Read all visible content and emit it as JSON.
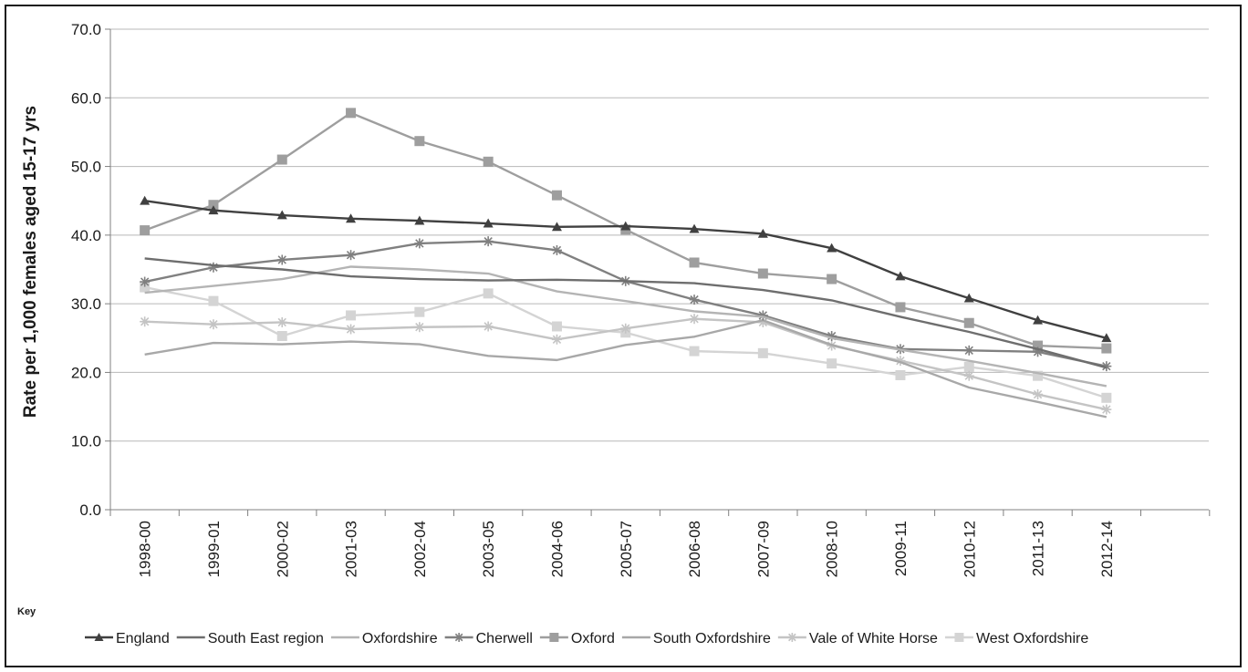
{
  "chart_data": {
    "type": "line",
    "ylabel": "Rate per 1,000 females aged 15-17 yrs",
    "ylim": [
      0,
      70
    ],
    "ytick_step": 10,
    "yticks": [
      "0.0",
      "10.0",
      "20.0",
      "30.0",
      "40.0",
      "50.0",
      "60.0",
      "70.0"
    ],
    "grid": true,
    "legend_title": "Key",
    "legend_position": "bottom",
    "categories": [
      "1998-00",
      "1999-01",
      "2000-02",
      "2001-03",
      "2002-04",
      "2003-05",
      "2004-06",
      "2005-07",
      "2006-08",
      "2007-09",
      "2008-10",
      "2009-11",
      "2010-12",
      "2011-13",
      "2012-14"
    ],
    "series": [
      {
        "name": "England",
        "color": "#404040",
        "marker": "triangle",
        "values": [
          45.0,
          43.6,
          42.9,
          42.4,
          42.1,
          41.7,
          41.2,
          41.3,
          40.9,
          40.2,
          38.1,
          34.0,
          30.8,
          27.6,
          25.0
        ]
      },
      {
        "name": "South East region",
        "color": "#6e6e6e",
        "marker": "none",
        "values": [
          36.6,
          35.6,
          35.0,
          34.0,
          33.6,
          33.4,
          33.5,
          33.3,
          33.0,
          32.0,
          30.5,
          28.1,
          25.9,
          23.4,
          20.7
        ]
      },
      {
        "name": "Oxfordshire",
        "color": "#b4b4b4",
        "marker": "none",
        "values": [
          31.6,
          32.6,
          33.6,
          35.4,
          35.0,
          34.4,
          31.8,
          30.4,
          28.9,
          28.1,
          25.0,
          23.3,
          21.7,
          19.9,
          18.0
        ]
      },
      {
        "name": "Cherwell",
        "color": "#808080",
        "marker": "asterisk",
        "values": [
          33.2,
          35.3,
          36.4,
          37.1,
          38.8,
          39.1,
          37.8,
          33.3,
          30.6,
          28.3,
          25.3,
          23.4,
          23.2,
          23.0,
          20.9
        ]
      },
      {
        "name": "Oxford",
        "color": "#9e9e9e",
        "marker": "square",
        "values": [
          40.7,
          44.4,
          51.0,
          57.8,
          53.7,
          50.7,
          45.8,
          40.8,
          36.0,
          34.4,
          33.6,
          29.5,
          27.2,
          23.9,
          23.5
        ]
      },
      {
        "name": "South Oxfordshire",
        "color": "#a8a8a8",
        "marker": "none",
        "values": [
          22.6,
          24.3,
          24.1,
          24.5,
          24.1,
          22.4,
          21.8,
          24.0,
          25.2,
          27.6,
          24.0,
          21.5,
          17.8,
          15.7,
          13.5
        ]
      },
      {
        "name": "Vale of White Horse",
        "color": "#c4c4c4",
        "marker": "asterisk",
        "values": [
          27.4,
          27.0,
          27.3,
          26.3,
          26.6,
          26.7,
          24.8,
          26.4,
          27.8,
          27.3,
          23.9,
          21.7,
          19.5,
          16.8,
          14.6
        ]
      },
      {
        "name": "West Oxfordshire",
        "color": "#d4d4d4",
        "marker": "square",
        "values": [
          32.4,
          30.4,
          25.3,
          28.3,
          28.8,
          31.5,
          26.7,
          25.8,
          23.1,
          22.8,
          21.3,
          19.6,
          20.8,
          19.5,
          16.3
        ]
      }
    ]
  }
}
